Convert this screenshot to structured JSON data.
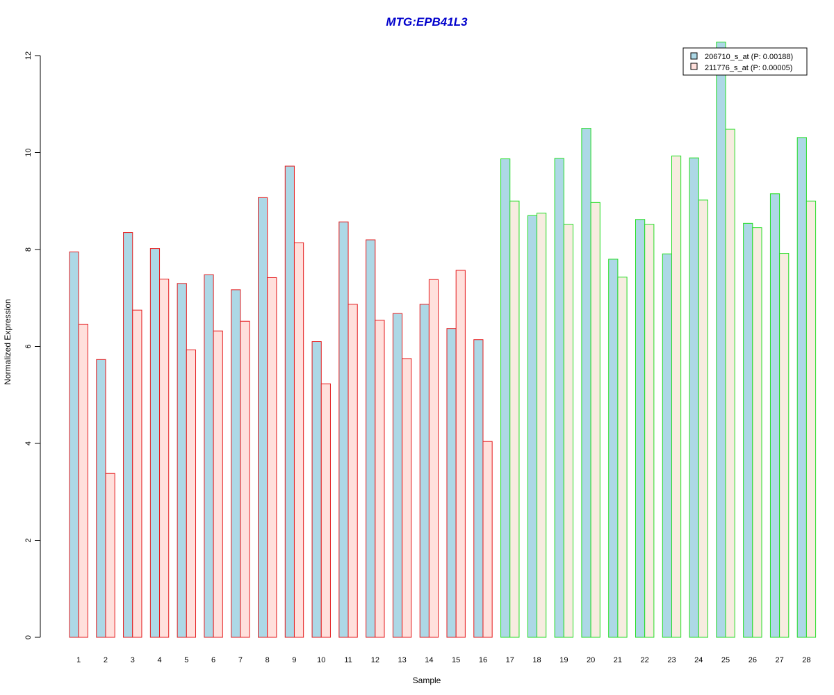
{
  "chart_data": {
    "type": "bar",
    "title": "MTG:EPB41L3",
    "xlabel": "Sample",
    "ylabel": "Normalized Expression",
    "ylim": [
      0,
      12
    ],
    "yticks": [
      "0",
      "2",
      "4",
      "6",
      "8",
      "10",
      "12"
    ],
    "categories": [
      "1",
      "2",
      "3",
      "4",
      "5",
      "6",
      "7",
      "8",
      "9",
      "10",
      "11",
      "12",
      "13",
      "14",
      "15",
      "16",
      "17",
      "18",
      "19",
      "20",
      "21",
      "22",
      "23",
      "24",
      "25",
      "26",
      "27",
      "28"
    ],
    "group_border_colors": [
      "#e41a1c",
      "#e41a1c",
      "#e41a1c",
      "#e41a1c",
      "#e41a1c",
      "#e41a1c",
      "#e41a1c",
      "#e41a1c",
      "#e41a1c",
      "#e41a1c",
      "#e41a1c",
      "#e41a1c",
      "#e41a1c",
      "#e41a1c",
      "#e41a1c",
      "#e41a1c",
      "#22dd22",
      "#22dd22",
      "#22dd22",
      "#22dd22",
      "#22dd22",
      "#22dd22",
      "#22dd22",
      "#22dd22",
      "#22dd22",
      "#22dd22",
      "#22dd22",
      "#22dd22"
    ],
    "series": [
      {
        "name": "206710_s_at (P: 0.00188)",
        "color": "#add8e6",
        "values": [
          7.95,
          5.73,
          8.35,
          8.02,
          7.3,
          7.48,
          7.17,
          9.07,
          9.72,
          6.1,
          8.57,
          8.2,
          6.68,
          6.87,
          6.37,
          6.14,
          9.87,
          8.7,
          9.88,
          10.5,
          7.8,
          8.62,
          7.91,
          9.89,
          12.28,
          8.54,
          9.15,
          10.31
        ]
      },
      {
        "name": "211776_s_at (P: 0.00005)",
        "color_red_group": "#ffe0dc",
        "color_green_group": "#f7ece0",
        "color": "#ffe0dc",
        "values": [
          6.46,
          3.38,
          6.75,
          7.39,
          5.93,
          6.32,
          6.52,
          7.42,
          8.14,
          5.23,
          6.87,
          6.54,
          5.75,
          7.38,
          7.57,
          4.04,
          9.0,
          8.75,
          8.52,
          8.97,
          7.43,
          8.52,
          9.93,
          9.02,
          10.48,
          8.45,
          7.92,
          9.0
        ]
      }
    ],
    "legend_position": "top-right"
  }
}
